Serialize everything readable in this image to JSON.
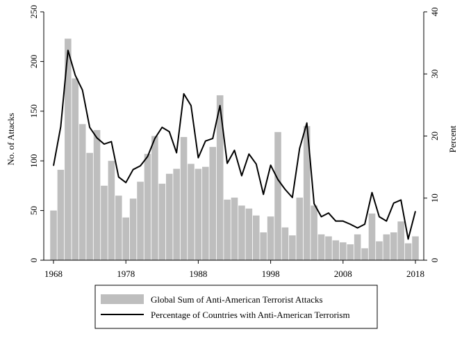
{
  "chart_data": {
    "type": "bar",
    "title": "",
    "xlabel": "",
    "ylabel": "No. of Attacks",
    "y2label": "Percent",
    "ylim": [
      0,
      250
    ],
    "y2lim": [
      0,
      40
    ],
    "yticks": [
      0,
      50,
      100,
      150,
      200,
      250
    ],
    "y2ticks": [
      0,
      10,
      20,
      30,
      40
    ],
    "xticks": [
      1968,
      1978,
      1988,
      1998,
      2008,
      2018
    ],
    "x": [
      1968,
      1969,
      1970,
      1971,
      1972,
      1973,
      1974,
      1975,
      1976,
      1977,
      1978,
      1979,
      1980,
      1981,
      1982,
      1983,
      1984,
      1985,
      1986,
      1987,
      1988,
      1989,
      1990,
      1991,
      1992,
      1993,
      1994,
      1995,
      1996,
      1997,
      1998,
      1999,
      2000,
      2001,
      2002,
      2003,
      2004,
      2005,
      2006,
      2007,
      2008,
      2009,
      2010,
      2011,
      2012,
      2013,
      2014,
      2015,
      2016,
      2017,
      2018
    ],
    "grid": false,
    "legend_position": "bottom",
    "series": [
      {
        "name": "Global Sum of Anti-American Terrorist Attacks",
        "kind": "bar",
        "axis": "left",
        "color": "#bebebe",
        "values": [
          50,
          91,
          223,
          183,
          137,
          108,
          131,
          75,
          100,
          65,
          43,
          62,
          79,
          107,
          125,
          77,
          87,
          92,
          124,
          97,
          92,
          94,
          114,
          166,
          61,
          63,
          55,
          52,
          45,
          28,
          44,
          129,
          33,
          25,
          63,
          135,
          55,
          26,
          24,
          20,
          18,
          16,
          26,
          12,
          47,
          19,
          26,
          28,
          39,
          17,
          24
        ]
      },
      {
        "name": "Percentage of Countries with Anti-American Terrorism",
        "kind": "line",
        "axis": "right",
        "color": "#000000",
        "values": [
          15.2,
          21.5,
          33.8,
          29.8,
          27.4,
          21.4,
          19.7,
          18.7,
          19.1,
          13.4,
          12.5,
          14.6,
          15.2,
          16.7,
          19.6,
          21.4,
          20.7,
          17.3,
          26.8,
          24.9,
          16.5,
          19.2,
          19.6,
          24.9,
          15.6,
          17.7,
          13.6,
          17.1,
          15.5,
          10.6,
          15.3,
          13.0,
          11.4,
          10.1,
          18.0,
          22.1,
          9.1,
          7.0,
          7.6,
          6.3,
          6.3,
          5.8,
          5.2,
          5.8,
          10.9,
          7.0,
          6.3,
          9.2,
          9.7,
          3.4,
          7.9
        ]
      }
    ]
  }
}
